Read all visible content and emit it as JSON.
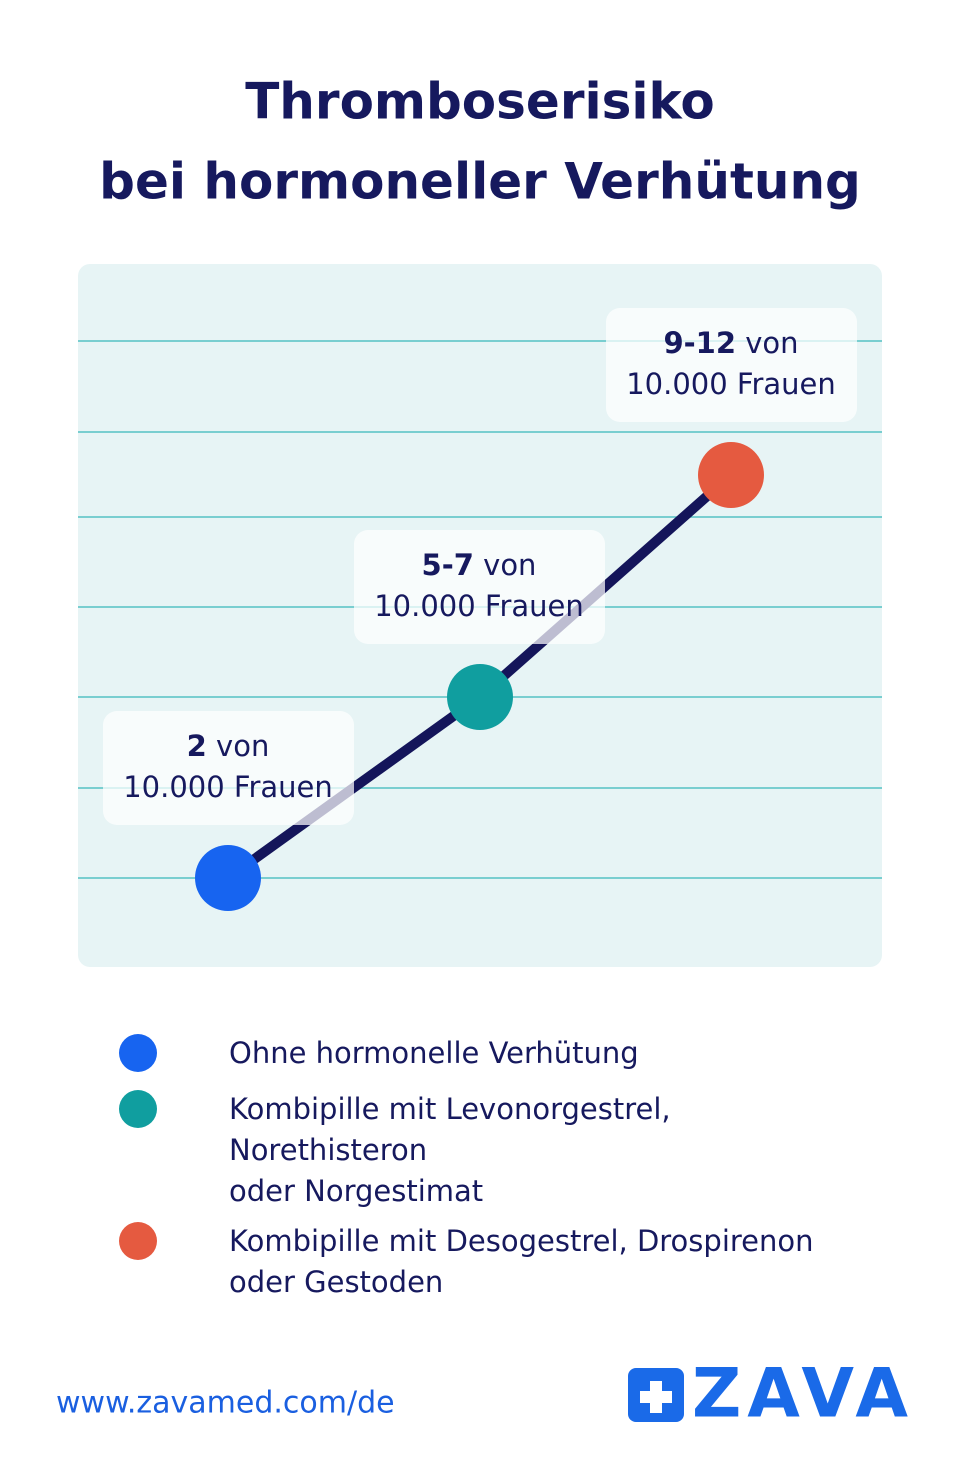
{
  "title": [
    "Thromboserisiko",
    "bei hormoneller Verhütung"
  ],
  "points": [
    {
      "bold": "2",
      "text": "von",
      "sub": "10.000 Frauen",
      "color": "#1764f0"
    },
    {
      "bold": "5-7",
      "text": "von",
      "sub": "10.000 Frauen",
      "color": "#109e9f"
    },
    {
      "bold": "9-12",
      "text": "von",
      "sub": "10.000 Frauen",
      "color": "#e55a40"
    }
  ],
  "legend": [
    {
      "lines": [
        "Ohne hormonelle Verhütung"
      ]
    },
    {
      "lines": [
        "Kombipille mit Levonorgestrel,",
        "Norethisteron",
        "oder Norgestimat"
      ]
    },
    {
      "lines": [
        "Kombipille mit Desogestrel, Drospirenon",
        "oder Gestoden"
      ]
    }
  ],
  "footer": {
    "url": "www.zavamed.com/de",
    "logo": "ZAVA"
  }
}
